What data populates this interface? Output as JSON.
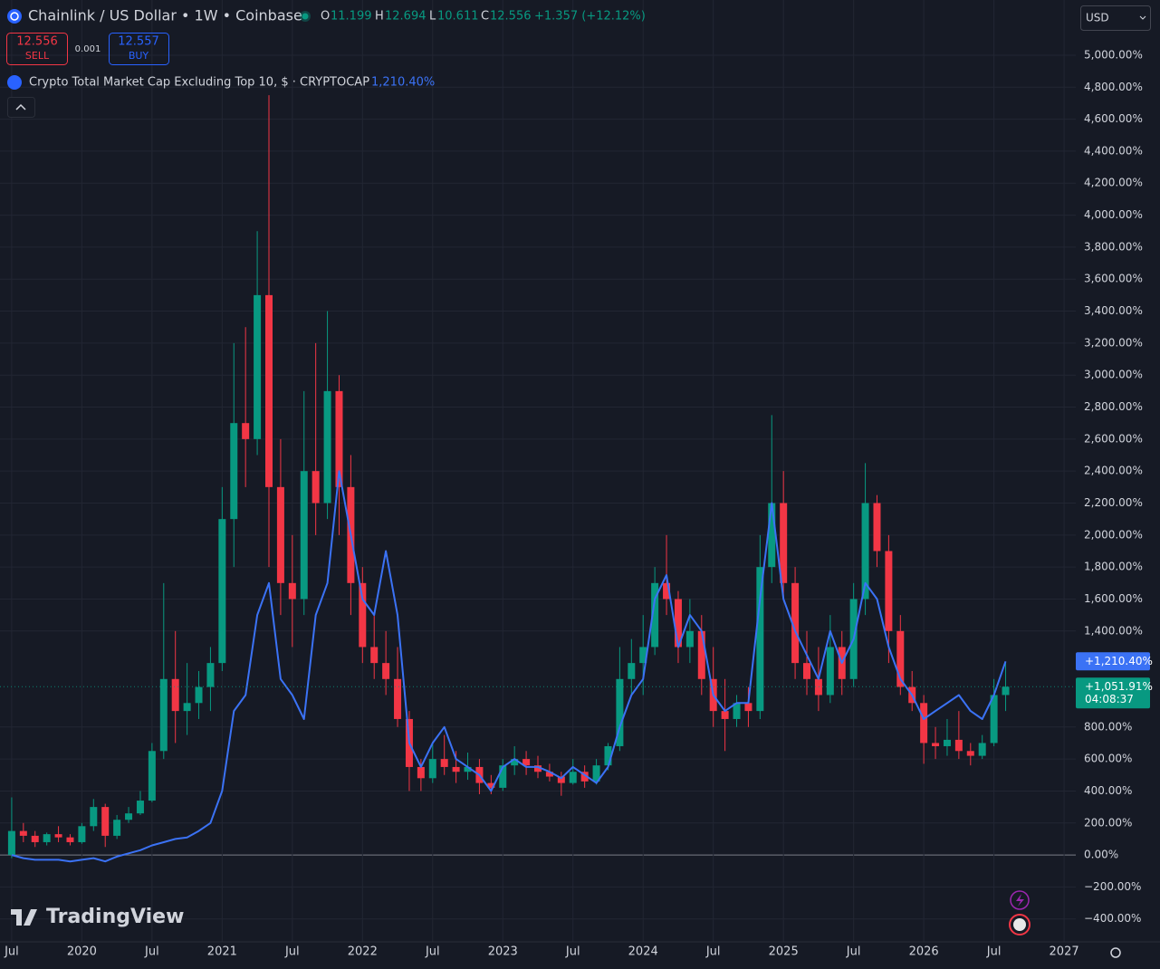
{
  "chart_data": {
    "type": "candlestick",
    "title": "Chainlink / US Dollar • 1W • Coinbase",
    "header": {
      "open_label": "O",
      "open": 11.199,
      "high_label": "H",
      "high": 12.694,
      "low_label": "L",
      "low": 10.611,
      "close_label": "C",
      "close": 12.556,
      "change": "+1.357 (+12.12%)"
    },
    "trade": {
      "sell": 12.556,
      "sell_label": "SELL",
      "spread": 0.001,
      "buy": 12.557,
      "buy_label": "BUY"
    },
    "currency": "USD",
    "brand": "TradingView",
    "up_color": "#089981",
    "down_color": "#f23645",
    "x": [
      "2019-07",
      "2019-08",
      "2019-09",
      "2019-10",
      "2019-11",
      "2019-12",
      "2020-01",
      "2020-02",
      "2020-03",
      "2020-04",
      "2020-05",
      "2020-06",
      "2020-07",
      "2020-08",
      "2020-09",
      "2020-10",
      "2020-11",
      "2020-12",
      "2021-01",
      "2021-02",
      "2021-03",
      "2021-04",
      "2021-05",
      "2021-06",
      "2021-07",
      "2021-08",
      "2021-09",
      "2021-10",
      "2021-11",
      "2021-12",
      "2022-01",
      "2022-02",
      "2022-03",
      "2022-04",
      "2022-05",
      "2022-06",
      "2022-07",
      "2022-08",
      "2022-09",
      "2022-10",
      "2022-11",
      "2022-12",
      "2023-01",
      "2023-02",
      "2023-03",
      "2023-04",
      "2023-05",
      "2023-06",
      "2023-07",
      "2023-08",
      "2023-09",
      "2023-10",
      "2023-11",
      "2023-12",
      "2024-01",
      "2024-02",
      "2024-03",
      "2024-04",
      "2024-05",
      "2024-06",
      "2024-07",
      "2024-08",
      "2024-09",
      "2024-10",
      "2024-11",
      "2024-12",
      "2025-01",
      "2025-02",
      "2025-03",
      "2025-04",
      "2025-05",
      "2025-06",
      "2025-07",
      "2025-08",
      "2025-09",
      "2025-10",
      "2025-11",
      "2025-12",
      "2026-01",
      "2026-02",
      "2026-03",
      "2026-04",
      "2026-05",
      "2026-06",
      "2026-07",
      "2026-08"
    ],
    "open": [
      0,
      150,
      120,
      80,
      130,
      110,
      80,
      180,
      300,
      120,
      220,
      260,
      340,
      650,
      1100,
      900,
      950,
      1050,
      1200,
      2100,
      2700,
      2600,
      3500,
      2300,
      1700,
      1600,
      2400,
      2200,
      2900,
      2300,
      1700,
      1300,
      1200,
      1100,
      850,
      550,
      480,
      600,
      550,
      520,
      550,
      450,
      420,
      560,
      600,
      560,
      520,
      490,
      450,
      520,
      460,
      560,
      680,
      1100,
      1200,
      1300,
      1700,
      1600,
      1300,
      1400,
      1100,
      900,
      850,
      950,
      900,
      1800,
      2200,
      1700,
      1200,
      1100,
      1000,
      1300,
      1100,
      1600,
      2200,
      1900,
      1400,
      1050,
      950,
      700,
      680,
      720,
      650,
      620,
      700,
      1000
    ],
    "high": [
      360,
      200,
      150,
      140,
      180,
      130,
      200,
      350,
      320,
      250,
      300,
      400,
      700,
      1700,
      1400,
      1200,
      1150,
      1300,
      2300,
      3200,
      3300,
      3900,
      4750,
      2600,
      2000,
      2900,
      3200,
      3400,
      3000,
      2500,
      1800,
      1500,
      1400,
      1300,
      900,
      600,
      700,
      750,
      650,
      640,
      600,
      500,
      600,
      680,
      650,
      620,
      570,
      520,
      600,
      560,
      600,
      700,
      1300,
      1350,
      1500,
      1800,
      2000,
      1650,
      1600,
      1500,
      1300,
      1100,
      1000,
      1050,
      2000,
      2750,
      2400,
      1800,
      1400,
      1300,
      1500,
      1400,
      1700,
      2450,
      2250,
      2000,
      1500,
      1150,
      1000,
      800,
      850,
      900,
      700,
      750,
      1100,
      1200
    ],
    "low": [
      -20,
      80,
      50,
      60,
      80,
      60,
      70,
      150,
      50,
      100,
      200,
      250,
      330,
      600,
      700,
      750,
      850,
      900,
      1150,
      1800,
      2300,
      2500,
      1800,
      1500,
      1300,
      1500,
      2000,
      2100,
      2000,
      1500,
      1200,
      1100,
      1000,
      800,
      400,
      400,
      450,
      500,
      450,
      470,
      380,
      380,
      400,
      500,
      500,
      480,
      460,
      370,
      440,
      420,
      440,
      530,
      650,
      1000,
      1000,
      1250,
      1500,
      1200,
      1200,
      1000,
      800,
      650,
      800,
      800,
      850,
      1700,
      1600,
      1100,
      1000,
      900,
      950,
      1000,
      1050,
      1500,
      1800,
      1200,
      1000,
      900,
      570,
      600,
      620,
      600,
      560,
      600,
      680,
      900
    ],
    "close": [
      150,
      120,
      80,
      130,
      110,
      80,
      180,
      300,
      120,
      220,
      260,
      340,
      650,
      1100,
      900,
      950,
      1050,
      1200,
      2100,
      2700,
      2600,
      3500,
      2300,
      1700,
      1600,
      2400,
      2200,
      2900,
      2300,
      1700,
      1300,
      1200,
      1100,
      850,
      550,
      480,
      600,
      550,
      520,
      550,
      450,
      420,
      560,
      600,
      560,
      520,
      490,
      450,
      520,
      460,
      560,
      680,
      1100,
      1200,
      1300,
      1700,
      1600,
      1300,
      1400,
      1100,
      900,
      850,
      950,
      900,
      1800,
      2200,
      1700,
      1200,
      1100,
      1000,
      1300,
      1100,
      1600,
      2200,
      1900,
      1400,
      1050,
      950,
      700,
      680,
      720,
      650,
      620,
      700,
      1000,
      1051.91
    ],
    "series": [
      {
        "name": "Crypto Total Market Cap Excluding Top 10, $ · CRYPTOCAP",
        "last_label": "1,210.40%",
        "color": "#3b72f5",
        "values": [
          0,
          -20,
          -30,
          -30,
          -30,
          -40,
          -30,
          -20,
          -40,
          -10,
          10,
          30,
          60,
          80,
          100,
          110,
          150,
          200,
          400,
          900,
          1000,
          1500,
          1700,
          1100,
          1000,
          850,
          1500,
          1700,
          2400,
          2000,
          1600,
          1500,
          1900,
          1500,
          700,
          550,
          700,
          800,
          600,
          550,
          500,
          400,
          550,
          600,
          550,
          550,
          520,
          480,
          550,
          500,
          450,
          550,
          800,
          1000,
          1100,
          1600,
          1750,
          1300,
          1500,
          1400,
          1000,
          900,
          950,
          950,
          1600,
          2200,
          1600,
          1400,
          1250,
          1100,
          1400,
          1200,
          1350,
          1700,
          1600,
          1300,
          1100,
          1000,
          850,
          900,
          950,
          1000,
          900,
          850,
          1000,
          1210.4
        ]
      }
    ],
    "series_tag": {
      "value": 1210.4,
      "label": "+1,210.40%"
    },
    "last_price": {
      "value": 1051.91,
      "label": "+1,051.91%",
      "countdown": "04:08:37"
    },
    "xlim": [
      "2019-06",
      "2027-02"
    ],
    "xticks": [
      {
        "value": "2019-07",
        "label": "Jul"
      },
      {
        "value": "2020-01",
        "label": "2020"
      },
      {
        "value": "2020-07",
        "label": "Jul"
      },
      {
        "value": "2021-01",
        "label": "2021"
      },
      {
        "value": "2021-07",
        "label": "Jul"
      },
      {
        "value": "2022-01",
        "label": "2022"
      },
      {
        "value": "2022-07",
        "label": "Jul"
      },
      {
        "value": "2023-01",
        "label": "2023"
      },
      {
        "value": "2023-07",
        "label": "Jul"
      },
      {
        "value": "2024-01",
        "label": "2024"
      },
      {
        "value": "2024-07",
        "label": "Jul"
      },
      {
        "value": "2025-01",
        "label": "2025"
      },
      {
        "value": "2025-07",
        "label": "Jul"
      },
      {
        "value": "2026-01",
        "label": "2026"
      },
      {
        "value": "2026-07",
        "label": "Jul"
      },
      {
        "value": "2027-01",
        "label": "2027"
      }
    ],
    "ylim": [
      -543,
      5345
    ],
    "yticks": [
      {
        "value": 5000,
        "label": "5,000.00%"
      },
      {
        "value": 4800,
        "label": "4,800.00%"
      },
      {
        "value": 4600,
        "label": "4,600.00%"
      },
      {
        "value": 4400,
        "label": "4,400.00%"
      },
      {
        "value": 4200,
        "label": "4,200.00%"
      },
      {
        "value": 4000,
        "label": "4,000.00%"
      },
      {
        "value": 3800,
        "label": "3,800.00%"
      },
      {
        "value": 3600,
        "label": "3,600.00%"
      },
      {
        "value": 3400,
        "label": "3,400.00%"
      },
      {
        "value": 3200,
        "label": "3,200.00%"
      },
      {
        "value": 3000,
        "label": "3,000.00%"
      },
      {
        "value": 2800,
        "label": "2,800.00%"
      },
      {
        "value": 2600,
        "label": "2,600.00%"
      },
      {
        "value": 2400,
        "label": "2,400.00%"
      },
      {
        "value": 2200,
        "label": "2,200.00%"
      },
      {
        "value": 2000,
        "label": "2,000.00%"
      },
      {
        "value": 1800,
        "label": "1,800.00%"
      },
      {
        "value": 1600,
        "label": "1,600.00%"
      },
      {
        "value": 1400,
        "label": "1,400.00%"
      },
      {
        "value": 800,
        "label": "800.00%"
      },
      {
        "value": 600,
        "label": "600.00%"
      },
      {
        "value": 400,
        "label": "400.00%"
      },
      {
        "value": 200,
        "label": "200.00%"
      },
      {
        "value": 0,
        "label": "0.00%"
      },
      {
        "value": -200,
        "label": "−200.00%"
      },
      {
        "value": -400,
        "label": "−400.00%"
      }
    ],
    "grid": true
  }
}
